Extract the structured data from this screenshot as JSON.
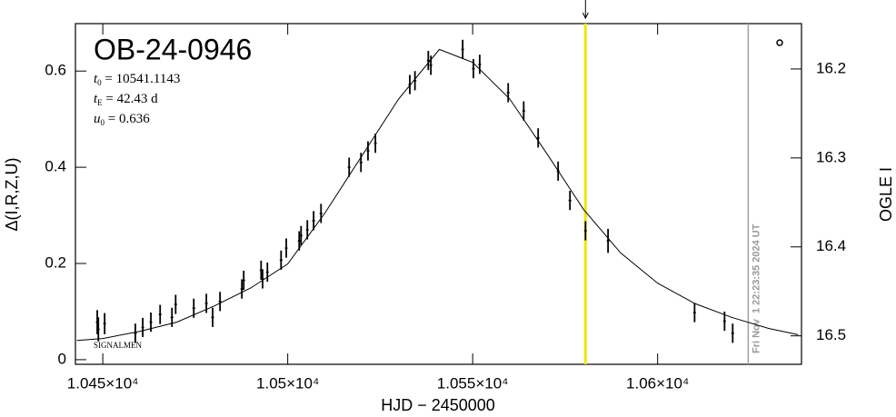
{
  "chart_data": {
    "type": "lightcurve",
    "title": "OB-24-0946",
    "x_label": "HJD − 2450000",
    "y_label": "Δ(I,R,Z,U)",
    "y2_label": "OGLE I",
    "footnote": "SIGNALMEN",
    "annotations": [
      {
        "symbol": "t",
        "sub": "0",
        "text": " = 10541.1143"
      },
      {
        "symbol": "t",
        "sub": "E",
        "text": " = 42.43 d"
      },
      {
        "symbol": "u",
        "sub": "0",
        "text": " = 0.636"
      }
    ],
    "xlim": [
      10442.6,
      10638.9
    ],
    "ylim": [
      -0.0096,
      0.6986
    ],
    "y2lim": [
      16.532,
      16.149
    ],
    "xticks": [
      {
        "value": 10450,
        "label": "1.045×10⁴"
      },
      {
        "value": 10500,
        "label": "1.05×10⁴"
      },
      {
        "value": 10550,
        "label": "1.055×10⁴"
      },
      {
        "value": 10600,
        "label": "1.06×10⁴"
      }
    ],
    "yticks": [
      0,
      0.2,
      0.4,
      0.6
    ],
    "y2ticks": [
      16.2,
      16.3,
      16.4,
      16.5
    ],
    "data": {
      "color": "#000000",
      "x": [
        10448.5,
        10448.8,
        10450.5,
        10458.8,
        10460.8,
        10463.0,
        10465.5,
        10468.7,
        10469.7,
        10474.6,
        10478.0,
        10479.7,
        10481.7,
        10487.6,
        10488.1,
        10492.8,
        10493.2,
        10494.5,
        10498.2,
        10499.6,
        10503.1,
        10503.6,
        10505.3,
        10507.0,
        10509.0,
        10516.6,
        10519.8,
        10521.7,
        10523.7,
        10533.0,
        10534.4,
        10538.0,
        10538.7,
        10547.3,
        10550.2,
        10551.9,
        10559.6,
        10563.8,
        10567.7,
        10573.1,
        10576.3,
        10580.5,
        10586.6,
        10610.0,
        10618.1,
        10620.3
      ],
      "values": [
        0.078,
        0.063,
        0.075,
        0.055,
        0.067,
        0.078,
        0.094,
        0.088,
        0.115,
        0.107,
        0.117,
        0.088,
        0.121,
        0.147,
        0.165,
        0.186,
        0.168,
        0.182,
        0.207,
        0.232,
        0.247,
        0.258,
        0.27,
        0.289,
        0.304,
        0.4,
        0.41,
        0.434,
        0.45,
        0.572,
        0.58,
        0.622,
        0.612,
        0.645,
        0.605,
        0.614,
        0.555,
        0.517,
        0.461,
        0.392,
        0.331,
        0.268,
        0.247,
        0.098,
        0.08,
        0.055
      ],
      "errors": [
        0.025,
        0.025,
        0.022,
        0.02,
        0.02,
        0.02,
        0.02,
        0.02,
        0.02,
        0.02,
        0.02,
        0.02,
        0.02,
        0.02,
        0.02,
        0.02,
        0.02,
        0.02,
        0.02,
        0.02,
        0.02,
        0.02,
        0.02,
        0.02,
        0.02,
        0.02,
        0.02,
        0.02,
        0.02,
        0.02,
        0.02,
        0.02,
        0.02,
        0.02,
        0.02,
        0.02,
        0.02,
        0.02,
        0.02,
        0.02,
        0.02,
        0.02,
        0.025,
        0.02,
        0.02,
        0.02
      ]
    },
    "model": {
      "color": "#000000",
      "x": [
        10443,
        10450,
        10460,
        10470,
        10480,
        10490,
        10500,
        10510,
        10520,
        10530,
        10541,
        10550,
        10560,
        10570,
        10580,
        10590,
        10600,
        10610,
        10620,
        10630,
        10638
      ],
      "values": [
        0.04,
        0.044,
        0.059,
        0.078,
        0.111,
        0.149,
        0.199,
        0.304,
        0.423,
        0.542,
        0.645,
        0.618,
        0.542,
        0.429,
        0.312,
        0.222,
        0.159,
        0.117,
        0.088,
        0.065,
        0.052
      ]
    },
    "marker_lines": [
      {
        "x": 10580.5,
        "color": "#f2e600"
      },
      {
        "x": 10624.5,
        "color": "#a0a0a0",
        "label": "Fri Nov  1 22:23:35 2024 UT"
      }
    ]
  }
}
